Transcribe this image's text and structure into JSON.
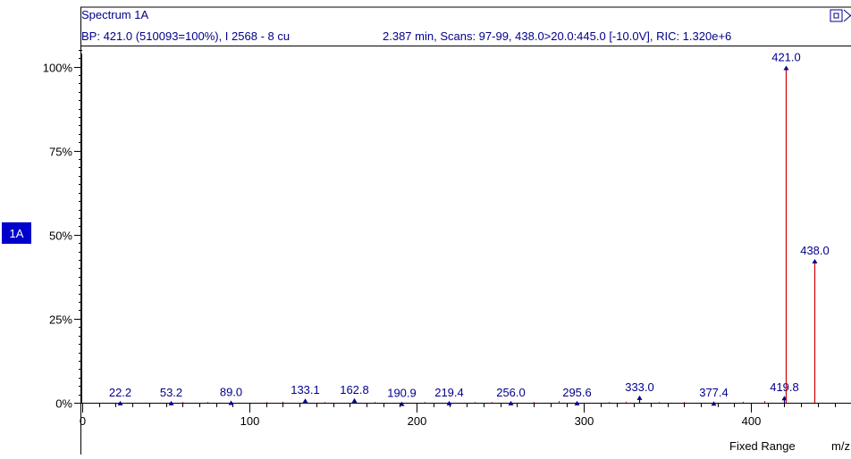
{
  "panel": {
    "title": "Spectrum 1A",
    "info_left": "BP: 421.0 (510093=100%), I 2568 - 8 cu",
    "info_right": "2.387 min, Scans: 97-99, 438.0>20.0:445.0 [-10.0V], RIC: 1.320e+6",
    "trace_badge": "1A",
    "range_mode": "Fixed Range",
    "x_unit_label": "m/z"
  },
  "colors": {
    "trace": "#00008b",
    "major_peak": "#cc0000",
    "badge_bg": "#0000cc",
    "badge_text": "#ffffff"
  },
  "icons": [
    "restore-icon",
    "close-icon"
  ],
  "chart_data": {
    "type": "bar",
    "title": "Spectrum 1A",
    "xlabel": "m/z",
    "ylabel": "",
    "xlim": [
      0,
      460
    ],
    "ylim": [
      0,
      107
    ],
    "x_ticks": [
      0,
      100,
      200,
      300,
      400
    ],
    "y_ticks": [
      0,
      25,
      50,
      75,
      100
    ],
    "y_tick_labels": [
      "0%",
      "25%",
      "50%",
      "75%",
      "100%"
    ],
    "x_minor_step": 10,
    "y_minor_step": 2.5,
    "peaks": [
      {
        "mz": 22.2,
        "intensity": 0.3,
        "label": "22.2"
      },
      {
        "mz": 53.2,
        "intensity": 0.3,
        "label": "53.2"
      },
      {
        "mz": 89.0,
        "intensity": 0.4,
        "label": "89.0"
      },
      {
        "mz": 133.1,
        "intensity": 1.0,
        "label": "133.1"
      },
      {
        "mz": 162.8,
        "intensity": 1.1,
        "label": "162.8"
      },
      {
        "mz": 190.9,
        "intensity": 0.1,
        "label": "190.9"
      },
      {
        "mz": 219.4,
        "intensity": 0.3,
        "label": "219.4"
      },
      {
        "mz": 256.0,
        "intensity": 0.3,
        "label": "256.0"
      },
      {
        "mz": 295.6,
        "intensity": 0.3,
        "label": "295.6"
      },
      {
        "mz": 333.0,
        "intensity": 1.9,
        "label": "333.0"
      },
      {
        "mz": 377.4,
        "intensity": 0.2,
        "label": "377.4"
      },
      {
        "mz": 419.8,
        "intensity": 1.8,
        "label": "419.8"
      },
      {
        "mz": 421.0,
        "intensity": 100.0,
        "label": "421.0"
      },
      {
        "mz": 438.0,
        "intensity": 42.5,
        "label": "438.0"
      }
    ],
    "noise": [
      {
        "mz": 60,
        "intensity": 0.2
      },
      {
        "mz": 75,
        "intensity": 0.2
      },
      {
        "mz": 110,
        "intensity": 0.2
      },
      {
        "mz": 120,
        "intensity": 0.3
      },
      {
        "mz": 145,
        "intensity": 0.2
      },
      {
        "mz": 175,
        "intensity": 0.2
      },
      {
        "mz": 205,
        "intensity": 0.2
      },
      {
        "mz": 235,
        "intensity": 0.2
      },
      {
        "mz": 245,
        "intensity": 0.2
      },
      {
        "mz": 270,
        "intensity": 0.2
      },
      {
        "mz": 285,
        "intensity": 0.5
      },
      {
        "mz": 315,
        "intensity": 0.2
      },
      {
        "mz": 325,
        "intensity": 0.3
      },
      {
        "mz": 345,
        "intensity": 0.2
      },
      {
        "mz": 360,
        "intensity": 0.2
      },
      {
        "mz": 395,
        "intensity": 0.3
      },
      {
        "mz": 408,
        "intensity": 0.5
      }
    ]
  }
}
